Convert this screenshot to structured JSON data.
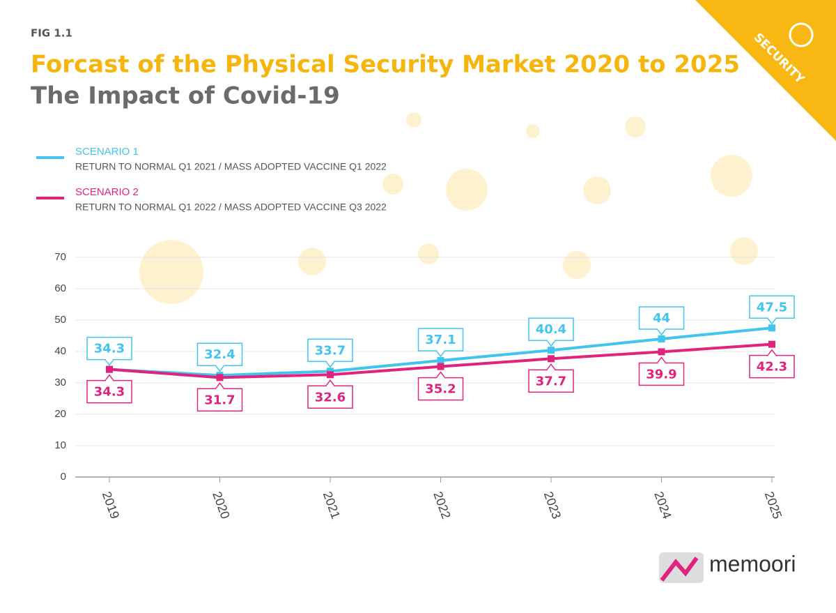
{
  "fig_label": "FIG 1.1",
  "badge": "SECURITY",
  "logo": "memoori",
  "chart_data": {
    "type": "line",
    "title": "Forcast of the Physical Security Market 2020 to 2025",
    "subtitle": "The Impact of Covid-19",
    "categories": [
      "2019",
      "2020",
      "2021",
      "2022",
      "2023",
      "2024",
      "2025"
    ],
    "series": [
      {
        "name": "SCENARIO 1",
        "description": "RETURN TO NORMAL Q1 2021 / MASS ADOPTED VACCINE Q1 2022",
        "color": "#41c4ee",
        "values": [
          34.3,
          32.4,
          33.7,
          37.1,
          40.4,
          44,
          47.5
        ]
      },
      {
        "name": "SCENARIO 2",
        "description": "RETURN TO NORMAL Q1 2022 / MASS ADOPTED VACCINE Q3 2022",
        "color": "#e0237c",
        "values": [
          34.3,
          31.7,
          32.6,
          35.2,
          37.7,
          39.9,
          42.3
        ]
      }
    ],
    "ylim": [
      0,
      70
    ],
    "yticks": [
      0,
      10,
      20,
      30,
      40,
      50,
      60,
      70
    ],
    "grid": true
  }
}
